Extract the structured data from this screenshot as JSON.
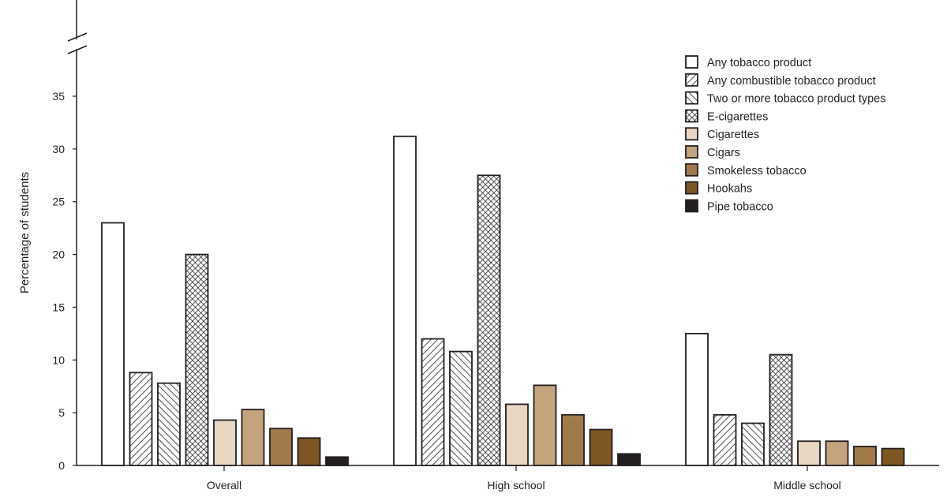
{
  "chart_data": {
    "type": "bar",
    "title": "",
    "xlabel": "",
    "ylabel": "Percentage  of students",
    "ylim": [
      0,
      35
    ],
    "yticks": [
      "0",
      "5",
      "10",
      "15",
      "20",
      "25",
      "30",
      "35"
    ],
    "axis_break": true,
    "grid": false,
    "legend_placement": "top-right",
    "categories": [
      "Overall",
      "High school",
      "Middle school"
    ],
    "series": [
      {
        "name": "Any tobacco product",
        "fill": "#ffffff",
        "pattern": "none",
        "values": [
          23.0,
          31.2,
          12.5
        ]
      },
      {
        "name": "Any combustible tobacco product",
        "fill": "#ffffff",
        "pattern": "diagonal-up",
        "values": [
          8.8,
          12.0,
          4.8
        ]
      },
      {
        "name": "Two or more tobacco product types",
        "fill": "#ffffff",
        "pattern": "diagonal-down",
        "values": [
          7.8,
          10.8,
          4.0
        ]
      },
      {
        "name": "E-cigarettes",
        "fill": "#ffffff",
        "pattern": "crosshatch",
        "values": [
          20.0,
          27.5,
          10.5
        ]
      },
      {
        "name": "Cigarettes",
        "fill": "#e6d6c2",
        "pattern": "none",
        "values": [
          4.3,
          5.8,
          2.3
        ]
      },
      {
        "name": "Cigars",
        "fill": "#c3a47e",
        "pattern": "none",
        "values": [
          5.3,
          7.6,
          2.3
        ]
      },
      {
        "name": "Smokeless tobacco",
        "fill": "#a17a4b",
        "pattern": "none",
        "values": [
          3.5,
          4.8,
          1.8
        ]
      },
      {
        "name": "Hookahs",
        "fill": "#7e5623",
        "pattern": "none",
        "values": [
          2.6,
          3.4,
          1.6
        ]
      },
      {
        "name": "Pipe tobacco",
        "fill": "#231f20",
        "pattern": "none",
        "values": [
          0.8,
          1.1,
          null
        ]
      }
    ]
  }
}
